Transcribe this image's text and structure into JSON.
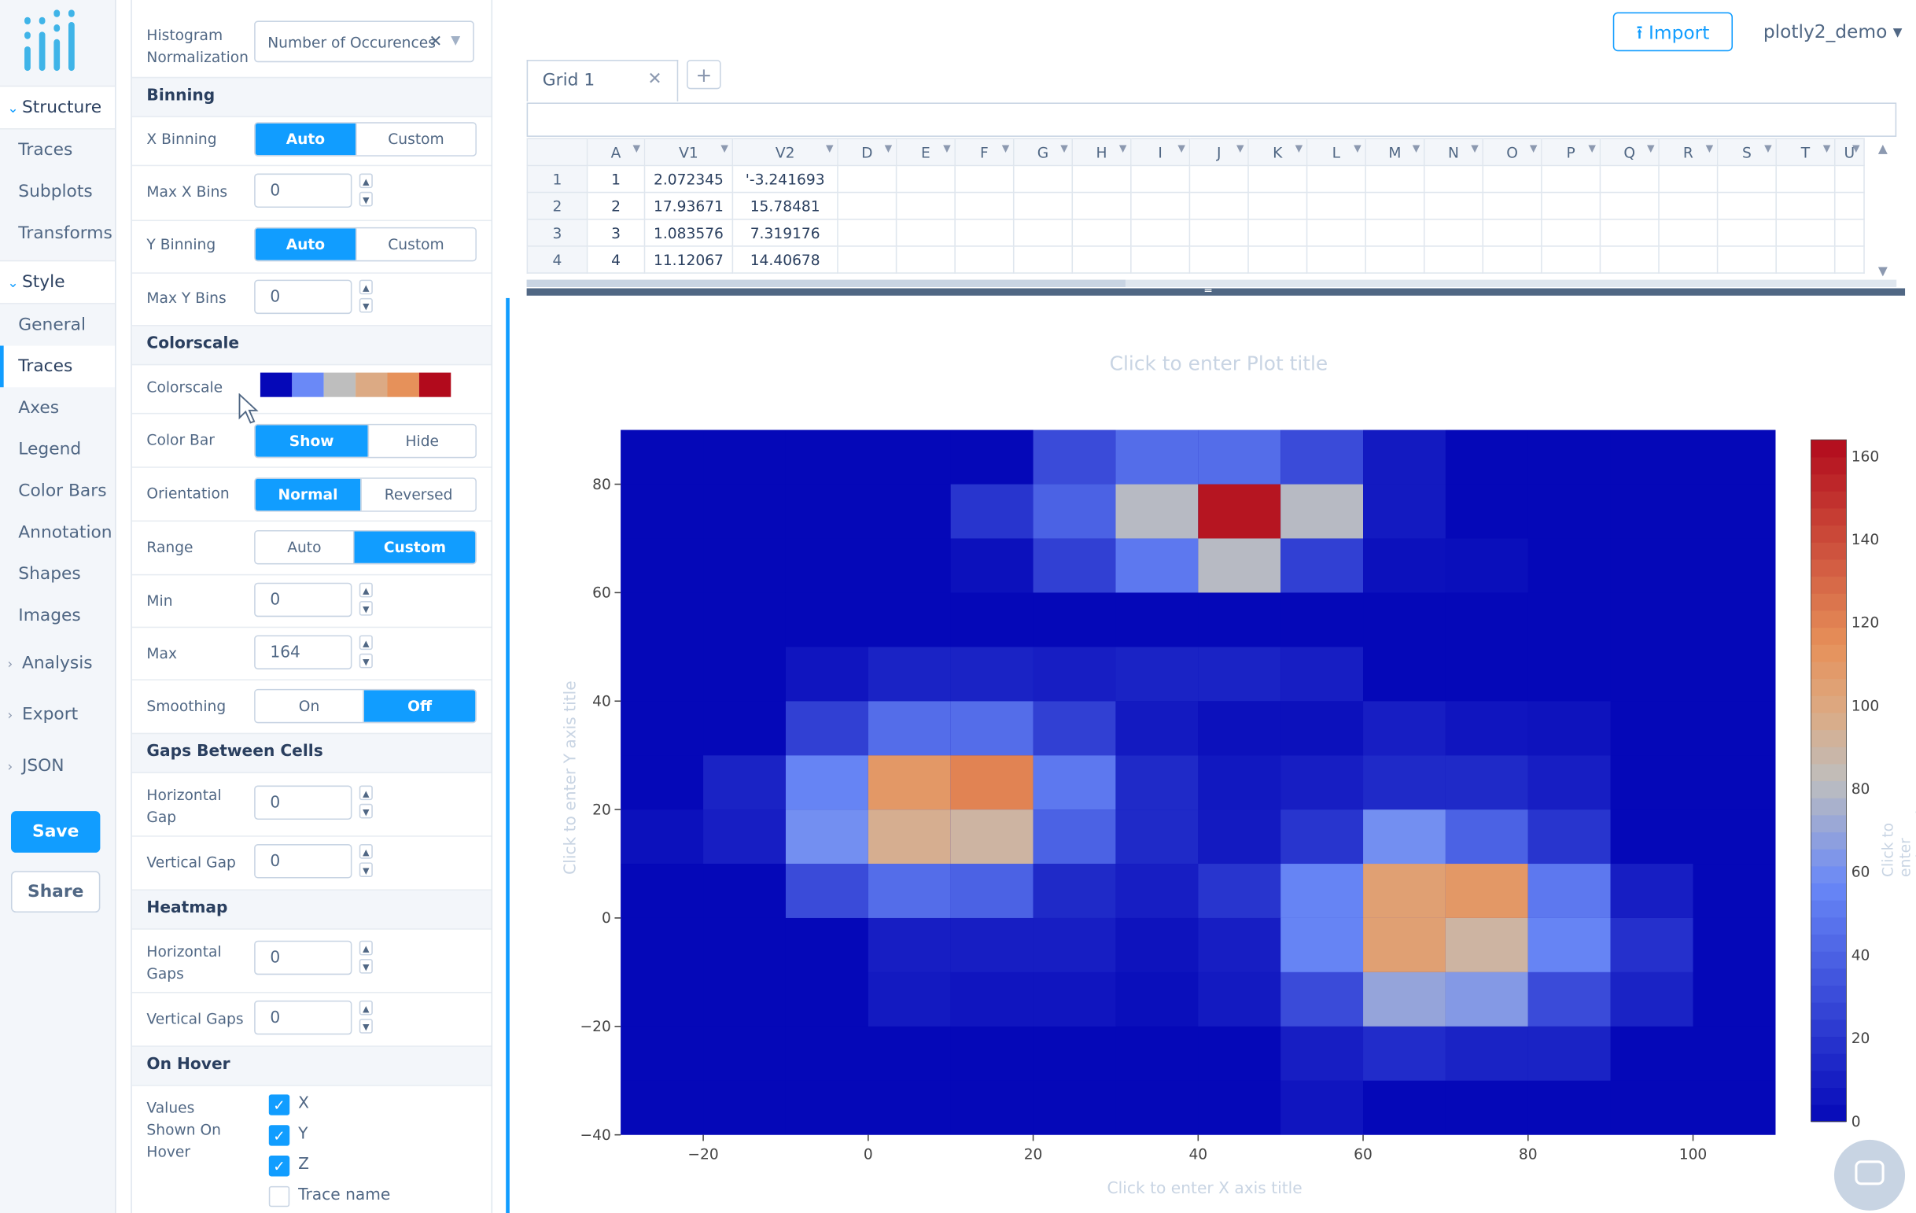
{
  "nav": {
    "structure": {
      "label": "Structure",
      "items": [
        "Traces",
        "Subplots",
        "Transforms"
      ]
    },
    "style": {
      "label": "Style",
      "items": [
        "General",
        "Traces",
        "Axes",
        "Legend",
        "Color Bars",
        "Annotation",
        "Shapes",
        "Images"
      ]
    },
    "analysis": "Analysis",
    "export": "Export",
    "json": "JSON",
    "save": "Save",
    "share": "Share"
  },
  "panel": {
    "hist_norm": {
      "label": "Histogram Normalization",
      "value": "Number of Occurences"
    },
    "binning": {
      "title": "Binning",
      "x_binning": {
        "label": "X Binning",
        "options": [
          "Auto",
          "Custom"
        ],
        "selected": "Auto"
      },
      "max_x_bins": {
        "label": "Max X Bins",
        "value": "0"
      },
      "y_binning": {
        "label": "Y Binning",
        "options": [
          "Auto",
          "Custom"
        ],
        "selected": "Auto"
      },
      "max_y_bins": {
        "label": "Max Y Bins",
        "value": "0"
      }
    },
    "colorscale": {
      "title": "Colorscale",
      "label": "Colorscale",
      "swatches": [
        "#0508b8",
        "#6a89f7",
        "#bebebe",
        "#dcaa84",
        "#e6915a",
        "#b20a1c"
      ],
      "color_bar": {
        "label": "Color Bar",
        "options": [
          "Show",
          "Hide"
        ],
        "selected": "Show"
      },
      "orientation": {
        "label": "Orientation",
        "options": [
          "Normal",
          "Reversed"
        ],
        "selected": "Normal"
      },
      "range": {
        "label": "Range",
        "options": [
          "Auto",
          "Custom"
        ],
        "selected": "Custom"
      },
      "min": {
        "label": "Min",
        "value": "0"
      },
      "max": {
        "label": "Max",
        "value": "164"
      },
      "smoothing": {
        "label": "Smoothing",
        "options": [
          "On",
          "Off"
        ],
        "selected": "Off"
      }
    },
    "gaps": {
      "title": "Gaps Between Cells",
      "horizontal": {
        "label": "Horizontal Gap",
        "value": "0"
      },
      "vertical": {
        "label": "Vertical Gap",
        "value": "0"
      }
    },
    "heatmap": {
      "title": "Heatmap",
      "horizontal": {
        "label": "Horizontal Gaps",
        "value": "0"
      },
      "vertical": {
        "label": "Vertical Gaps",
        "value": "0"
      }
    },
    "hover": {
      "title": "On Hover",
      "label": "Values Shown On Hover",
      "options": [
        {
          "label": "X",
          "checked": true
        },
        {
          "label": "Y",
          "checked": true
        },
        {
          "label": "Z",
          "checked": true
        },
        {
          "label": "Trace name",
          "checked": false
        }
      ]
    }
  },
  "topbar": {
    "import": "Import",
    "user": "plotly2_demo ▾"
  },
  "grid": {
    "tab": "Grid 1",
    "add": "+",
    "columns": [
      "A",
      "V1",
      "V2",
      "D",
      "E",
      "F",
      "G",
      "H",
      "I",
      "J",
      "K",
      "L",
      "M",
      "N",
      "O",
      "P",
      "Q",
      "R",
      "S",
      "T",
      "U"
    ],
    "rows": [
      [
        "1",
        "1",
        "2.072345",
        "'-3.241693"
      ],
      [
        "2",
        "2",
        "17.93671",
        "15.78481"
      ],
      [
        "3",
        "3",
        "1.083576",
        "7.319176"
      ],
      [
        "4",
        "4",
        "11.12067",
        "14.40678"
      ]
    ]
  },
  "plot": {
    "title_placeholder": "Click to enter Plot title",
    "x_title_placeholder": "Click to enter X axis title",
    "y_title_placeholder": "Click to enter Y axis title",
    "colorbar_title_placeholder": "Click to enter Colorscale title"
  },
  "chart_data": {
    "type": "heatmap",
    "x_bin_start": -30,
    "y_bin_start": -40,
    "bin_size": 10,
    "x_ticks": [
      -20,
      0,
      20,
      40,
      60,
      80,
      100
    ],
    "y_ticks": [
      -40,
      -20,
      0,
      20,
      40,
      60,
      80
    ],
    "xlim": [
      -30,
      110
    ],
    "ylim": [
      -40,
      90
    ],
    "zmin": 0,
    "zmax": 164,
    "colorbar_ticks": [
      0,
      20,
      40,
      60,
      80,
      100,
      120,
      140,
      160
    ],
    "colorscale": [
      [
        "0",
        "#0508b8"
      ],
      [
        "0.35",
        "#6a89f7"
      ],
      [
        "0.5",
        "#bebebe"
      ],
      [
        "0.6",
        "#dcaa84"
      ],
      [
        "0.7",
        "#e6915a"
      ],
      [
        "1",
        "#b20a1c"
      ]
    ],
    "z": [
      [
        0,
        0,
        0,
        0,
        0,
        0,
        0,
        0,
        6,
        0,
        0,
        0,
        0,
        0
      ],
      [
        0,
        0,
        0,
        0,
        0,
        0,
        0,
        0,
        10,
        16,
        12,
        12,
        0,
        0
      ],
      [
        0,
        0,
        0,
        8,
        6,
        6,
        3,
        8,
        30,
        70,
        65,
        30,
        12,
        0
      ],
      [
        0,
        0,
        0,
        10,
        10,
        10,
        5,
        10,
        55,
        105,
        90,
        55,
        18,
        0
      ],
      [
        0,
        0,
        30,
        45,
        40,
        15,
        10,
        20,
        55,
        105,
        110,
        50,
        10,
        0
      ],
      [
        4,
        10,
        60,
        95,
        90,
        40,
        15,
        8,
        20,
        60,
        40,
        20,
        0,
        0
      ],
      [
        0,
        12,
        55,
        110,
        120,
        50,
        15,
        7,
        10,
        15,
        15,
        10,
        0,
        0
      ],
      [
        0,
        0,
        25,
        45,
        45,
        25,
        8,
        4,
        4,
        10,
        6,
        5,
        0,
        0
      ],
      [
        0,
        0,
        6,
        12,
        12,
        10,
        12,
        12,
        10,
        0,
        0,
        0,
        0,
        0
      ],
      [
        0,
        0,
        0,
        0,
        0,
        0,
        0,
        0,
        0,
        0,
        0,
        0,
        0,
        0
      ],
      [
        0,
        0,
        0,
        0,
        4,
        25,
        50,
        80,
        25,
        4,
        3,
        0,
        0,
        0
      ],
      [
        0,
        0,
        0,
        0,
        20,
        40,
        80,
        160,
        80,
        8,
        0,
        0,
        0,
        0
      ],
      [
        0,
        0,
        0,
        0,
        0,
        30,
        45,
        45,
        30,
        8,
        0,
        0,
        0,
        0
      ],
      [
        0,
        0,
        0,
        0,
        0,
        0,
        8,
        15,
        10,
        0,
        0,
        0,
        0,
        0
      ]
    ]
  }
}
